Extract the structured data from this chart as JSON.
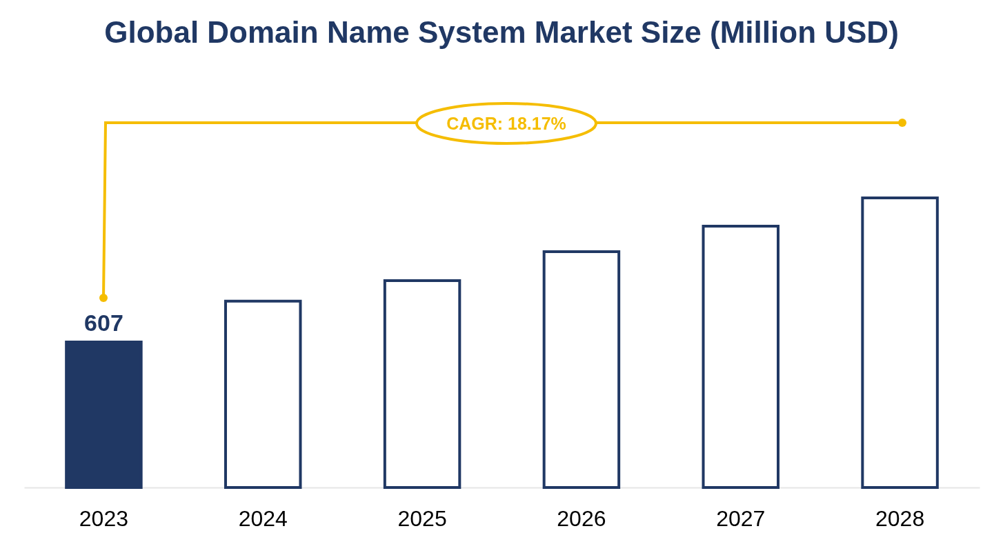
{
  "chart_data": {
    "type": "bar",
    "title": "Global Domain Name System Market Size (Million USD)",
    "categories": [
      "2023",
      "2024",
      "2025",
      "2026",
      "2027",
      "2028"
    ],
    "values": [
      607,
      777,
      863,
      984,
      1090,
      1208
    ],
    "value_labels": [
      "607",
      null,
      null,
      null,
      null,
      null
    ],
    "color": "#203864",
    "colors": [
      "#203864",
      "#ffffff",
      "#ffffff",
      "#ffffff",
      "#ffffff",
      "#ffffff"
    ],
    "annotations": [
      "CAGR: 18.17%"
    ]
  }
}
